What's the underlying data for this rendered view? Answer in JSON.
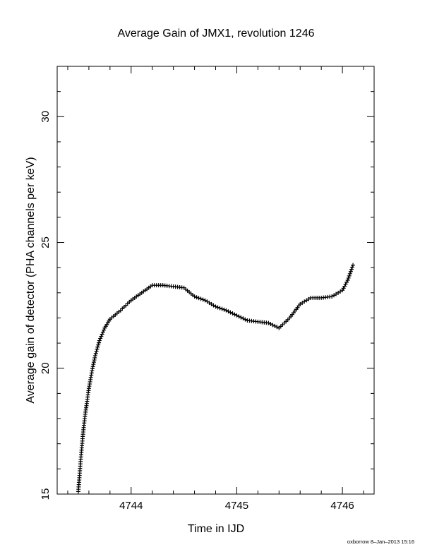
{
  "chart_data": {
    "type": "scatter",
    "title": "Average Gain of JMX1, revolution 1246",
    "xlabel": "Time in IJD",
    "ylabel": "Average gain of detector (PHA channels per keV)",
    "xlim": [
      4743.3,
      4746.3
    ],
    "ylim": [
      15,
      32
    ],
    "x_ticks": [
      4744,
      4745,
      4746
    ],
    "x_tick_labels": [
      "4744",
      "4745",
      "4746"
    ],
    "y_ticks": [
      15,
      20,
      25,
      30
    ],
    "y_tick_labels": [
      "15",
      "20",
      "25",
      "30"
    ],
    "marker": "+",
    "grid": false,
    "series": [
      {
        "points": [
          [
            4743.5,
            15.1
          ],
          [
            4743.52,
            16.2
          ],
          [
            4743.54,
            17.2
          ],
          [
            4743.56,
            18.0
          ],
          [
            4743.58,
            18.6
          ],
          [
            4743.6,
            19.2
          ],
          [
            4743.63,
            19.9
          ],
          [
            4743.66,
            20.5
          ],
          [
            4743.7,
            21.1
          ],
          [
            4743.75,
            21.6
          ],
          [
            4743.8,
            21.95
          ],
          [
            4743.9,
            22.3
          ],
          [
            4744.0,
            22.7
          ],
          [
            4744.1,
            23.0
          ],
          [
            4744.2,
            23.3
          ],
          [
            4744.3,
            23.3
          ],
          [
            4744.4,
            23.25
          ],
          [
            4744.5,
            23.2
          ],
          [
            4744.6,
            22.85
          ],
          [
            4744.7,
            22.7
          ],
          [
            4744.8,
            22.45
          ],
          [
            4744.9,
            22.3
          ],
          [
            4745.0,
            22.1
          ],
          [
            4745.1,
            21.9
          ],
          [
            4745.2,
            21.85
          ],
          [
            4745.3,
            21.8
          ],
          [
            4745.4,
            21.6
          ],
          [
            4745.5,
            22.0
          ],
          [
            4745.6,
            22.55
          ],
          [
            4745.7,
            22.8
          ],
          [
            4745.8,
            22.8
          ],
          [
            4745.9,
            22.85
          ],
          [
            4746.0,
            23.1
          ],
          [
            4746.05,
            23.5
          ],
          [
            4746.1,
            24.1
          ]
        ]
      }
    ]
  },
  "footer_text": "oxborrow  8–Jan–2013 15:16"
}
